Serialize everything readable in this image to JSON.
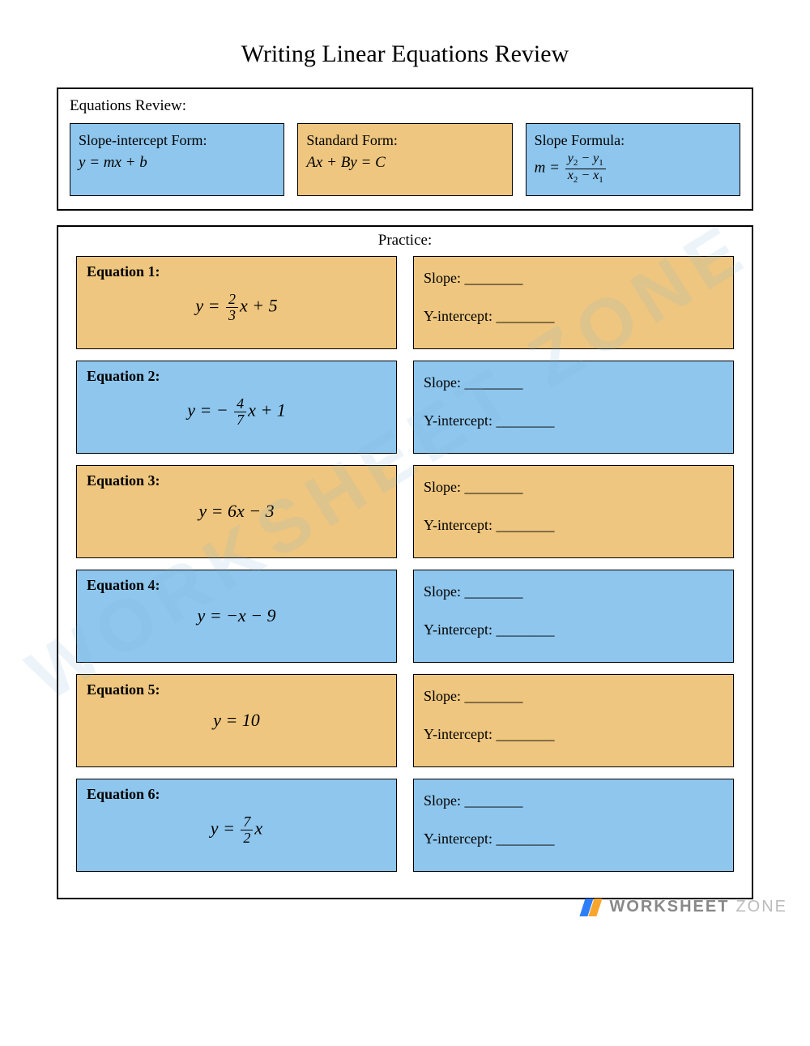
{
  "title": "Writing Linear Equations Review",
  "review": {
    "heading": "Equations Review:",
    "cards": [
      {
        "title": "Slope-intercept Form:",
        "body_html": "<i>y</i> = <i>mx</i> + <i>b</i>",
        "color": "blue"
      },
      {
        "title": "Standard Form:",
        "body_html": "<i>Ax</i> + <i>By</i> = <i>C</i>",
        "color": "orange"
      },
      {
        "title": "Slope Formula:",
        "body_html": "<i>m</i> = <span class=\"frac\"><span class=\"num\"><i>y</i><span class=\"sub\">2</span> − <i>y</i><span class=\"sub\">1</span></span><span class=\"den\"><i>x</i><span class=\"sub\">2</span> − <i>x</i><span class=\"sub\">1</span></span></span>",
        "color": "blue"
      }
    ]
  },
  "practice": {
    "heading": "Practice:",
    "slope_label": "Slope: ________",
    "yint_label": "Y-intercept: ________",
    "rows": [
      {
        "label": "Equation 1:",
        "eq_html": "<i>y</i> = <span class=\"frac\"><span class=\"num\">2</span><span class=\"den\">3</span></span><i>x</i> + 5",
        "color": "orange"
      },
      {
        "label": "Equation 2:",
        "eq_html": "<i>y</i> = − <span class=\"frac\"><span class=\"num\">4</span><span class=\"den\">7</span></span><i>x</i> + 1",
        "color": "blue"
      },
      {
        "label": "Equation 3:",
        "eq_html": "<i>y</i> = 6<i>x</i> − 3",
        "color": "orange"
      },
      {
        "label": "Equation 4:",
        "eq_html": "<i>y</i> = −<i>x</i> − 9",
        "color": "blue"
      },
      {
        "label": "Equation 5:",
        "eq_html": "<i>y</i> = 10",
        "color": "orange"
      },
      {
        "label": "Equation 6:",
        "eq_html": "<i>y</i> = <span class=\"frac\"><span class=\"num\">7</span><span class=\"den\">2</span></span><i>x</i>",
        "color": "blue"
      }
    ]
  },
  "colors": {
    "blue": "#8ec6ed",
    "orange": "#eec67f",
    "border": "#000000",
    "bg": "#ffffff"
  },
  "watermark": "WORKSHEET ZONE",
  "footer": {
    "brand": "WORKSHEET",
    "zone": "ZONE"
  }
}
